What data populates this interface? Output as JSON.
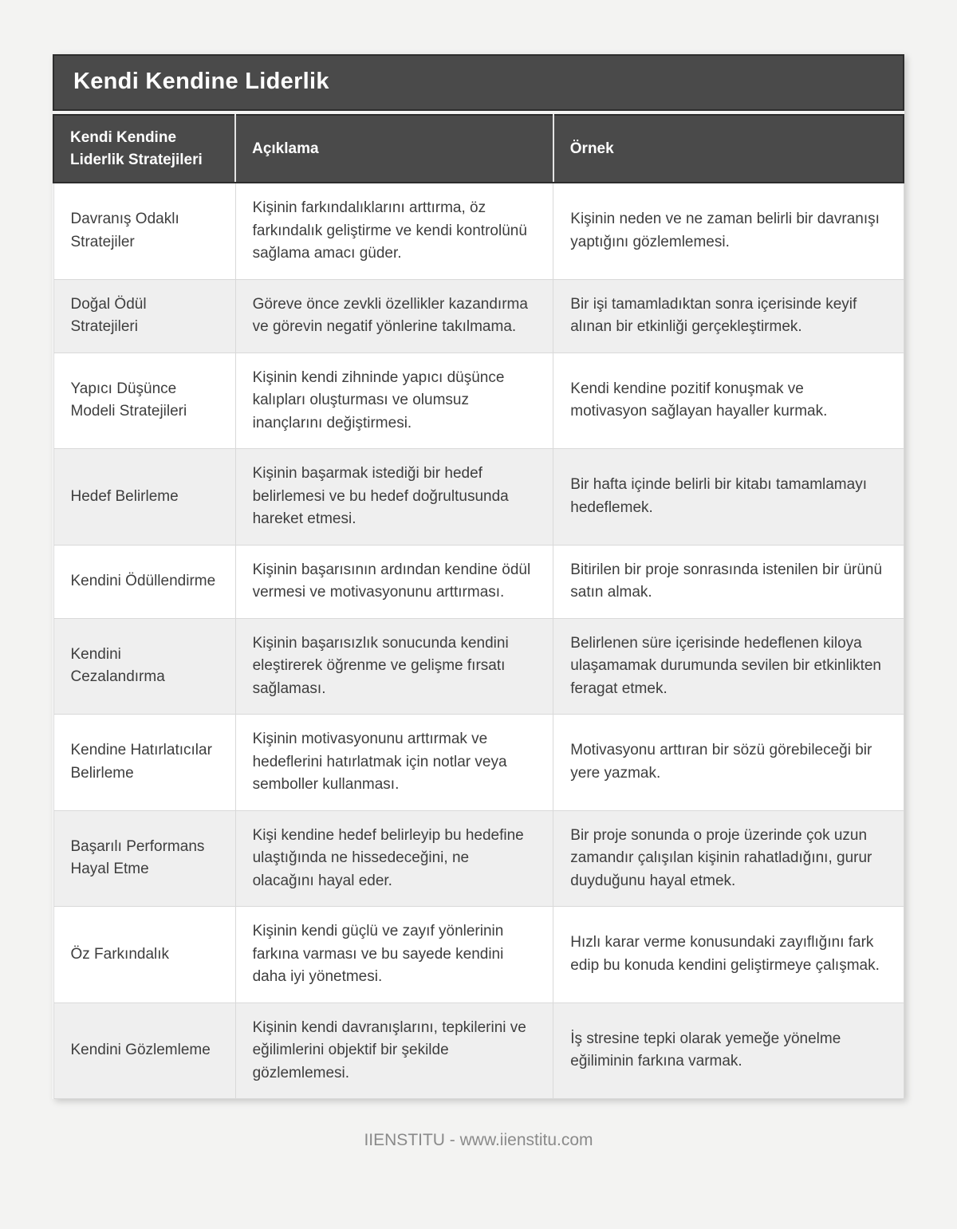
{
  "header": {
    "title": "Kendi Kendine Liderlik"
  },
  "table": {
    "columns": [
      "Kendi Kendine Liderlik Stratejileri",
      "Açıklama",
      "Örnek"
    ],
    "rows": [
      {
        "strategy": "Davranış Odaklı Stratejiler",
        "description": "Kişinin farkındalıklarını arttırma, öz farkındalık geliştirme ve kendi kontrolünü sağlama amacı güder.",
        "example": "Kişinin neden ve ne zaman belirli bir davranışı yaptığını gözlemlemesi."
      },
      {
        "strategy": "Doğal Ödül Stratejileri",
        "description": "Göreve önce zevkli özellikler kazandırma ve görevin negatif yönlerine takılmama.",
        "example": "Bir işi tamamladıktan sonra içerisinde keyif alınan bir etkinliği gerçekleştirmek."
      },
      {
        "strategy": "Yapıcı Düşünce Modeli Stratejileri",
        "description": "Kişinin kendi zihninde yapıcı düşünce kalıpları oluşturması ve olumsuz inançlarını değiştirmesi.",
        "example": "Kendi kendine pozitif konuşmak ve motivasyon sağlayan hayaller kurmak."
      },
      {
        "strategy": "Hedef Belirleme",
        "description": "Kişinin başarmak istediği bir hedef belirlemesi ve bu hedef doğrultusunda hareket etmesi.",
        "example": "Bir hafta içinde belirli bir kitabı tamamlamayı hedeflemek."
      },
      {
        "strategy": "Kendini Ödüllendirme",
        "description": "Kişinin başarısının ardından kendine ödül vermesi ve motivasyonunu arttırması.",
        "example": "Bitirilen bir proje sonrasında istenilen bir ürünü satın almak."
      },
      {
        "strategy": "Kendini Cezalandırma",
        "description": "Kişinin başarısızlık sonucunda kendini eleştirerek öğrenme ve gelişme fırsatı sağlaması.",
        "example": "Belirlenen süre içerisinde hedeflenen kiloya ulaşamamak durumunda sevilen bir etkinlikten feragat etmek."
      },
      {
        "strategy": "Kendine Hatırlatıcılar Belirleme",
        "description": "Kişinin motivasyonunu arttırmak ve hedeflerini hatırlatmak için notlar veya semboller kullanması.",
        "example": "Motivasyonu arttıran bir sözü görebileceği bir yere yazmak."
      },
      {
        "strategy": "Başarılı Performans Hayal Etme",
        "description": "Kişi kendine hedef belirleyip bu hedefine ulaştığında ne hissedeceğini, ne olacağını hayal eder.",
        "example": "Bir proje sonunda o proje üzerinde çok uzun zamandır çalışılan kişinin rahatladığını, gurur duyduğunu hayal etmek."
      },
      {
        "strategy": "Öz Farkındalık",
        "description": "Kişinin kendi güçlü ve zayıf yönlerinin farkına varması ve bu sayede kendini daha iyi yönetmesi.",
        "example": "Hızlı karar verme konusundaki zayıflığını fark edip bu konuda kendini geliştirmeye çalışmak."
      },
      {
        "strategy": "Kendini Gözlemleme",
        "description": "Kişinin kendi davranışlarını, tepkilerini ve eğilimlerini objektif bir şekilde gözlemlemesi.",
        "example": "İş stresine tepki olarak yemeğe yönelme eğiliminin farkına varmak."
      }
    ]
  },
  "footer": {
    "credit": "IIENSTITU - www.iienstitu.com"
  },
  "colors": {
    "page_background": "#f3f3f2",
    "header_background": "#4a4a4a",
    "header_border": "#2d2d2d",
    "row_alt_background": "#efefef",
    "body_text": "#3e3e3e",
    "cell_border": "#d9d9d9",
    "footer_text": "#8a8a8a"
  }
}
